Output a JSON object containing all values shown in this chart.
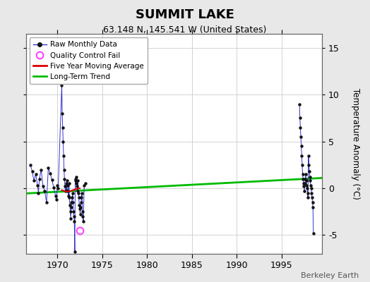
{
  "title": "SUMMIT LAKE",
  "subtitle": "63.148 N, 145.541 W (United States)",
  "ylabel_right": "Temperature Anomaly (°C)",
  "credit": "Berkeley Earth",
  "xlim": [
    1966.5,
    1999.5
  ],
  "ylim": [
    -7.0,
    16.5
  ],
  "xticks": [
    1970,
    1975,
    1980,
    1985,
    1990,
    1995
  ],
  "yticks": [
    -5,
    0,
    5,
    10,
    15
  ],
  "fig_bg_color": "#e8e8e8",
  "plot_bg_color": "#ffffff",
  "raw_data": [
    [
      1967.0,
      2.5
    ],
    [
      1967.2,
      1.8
    ],
    [
      1967.4,
      0.8
    ],
    [
      1967.6,
      1.5
    ],
    [
      1967.8,
      0.3
    ],
    [
      1967.9,
      -0.5
    ],
    [
      1968.0,
      1.0
    ],
    [
      1968.2,
      2.0
    ],
    [
      1968.4,
      0.2
    ],
    [
      1968.6,
      -0.3
    ],
    [
      1968.8,
      -1.5
    ],
    [
      1969.0,
      2.2
    ],
    [
      1969.2,
      1.6
    ],
    [
      1969.4,
      0.9
    ],
    [
      1969.6,
      0.1
    ],
    [
      1969.8,
      -0.8
    ],
    [
      1969.9,
      -1.2
    ],
    [
      1970.0,
      0.3
    ],
    [
      1970.1,
      0.0
    ],
    [
      1970.5,
      11.0
    ],
    [
      1970.55,
      8.0
    ],
    [
      1970.6,
      6.5
    ],
    [
      1970.65,
      5.0
    ],
    [
      1970.7,
      3.5
    ],
    [
      1970.75,
      2.0
    ],
    [
      1970.8,
      1.0
    ],
    [
      1970.85,
      0.2
    ],
    [
      1970.9,
      -0.3
    ],
    [
      1971.0,
      0.5
    ],
    [
      1971.05,
      -0.2
    ],
    [
      1971.1,
      0.8
    ],
    [
      1971.15,
      0.3
    ],
    [
      1971.2,
      -0.3
    ],
    [
      1971.25,
      -0.8
    ],
    [
      1971.3,
      0.5
    ],
    [
      1971.35,
      -1.0
    ],
    [
      1971.4,
      -1.8
    ],
    [
      1971.45,
      -2.5
    ],
    [
      1971.5,
      -3.2
    ],
    [
      1971.55,
      -2.0
    ],
    [
      1971.6,
      -1.5
    ],
    [
      1971.65,
      -1.0
    ],
    [
      1971.7,
      -0.5
    ],
    [
      1971.75,
      -1.5
    ],
    [
      1971.8,
      -2.5
    ],
    [
      1971.85,
      -3.0
    ],
    [
      1971.9,
      -3.5
    ],
    [
      1971.95,
      -6.8
    ],
    [
      1972.0,
      1.0
    ],
    [
      1972.05,
      0.8
    ],
    [
      1972.1,
      0.5
    ],
    [
      1972.15,
      1.2
    ],
    [
      1972.2,
      0.2
    ],
    [
      1972.25,
      -0.3
    ],
    [
      1972.3,
      0.8
    ],
    [
      1972.35,
      -0.5
    ],
    [
      1972.4,
      -1.0
    ],
    [
      1972.45,
      -1.8
    ],
    [
      1972.5,
      -2.2
    ],
    [
      1972.55,
      -2.8
    ],
    [
      1972.6,
      -2.0
    ],
    [
      1972.65,
      -1.5
    ],
    [
      1972.7,
      -1.0
    ],
    [
      1972.75,
      -0.5
    ],
    [
      1972.8,
      -2.5
    ],
    [
      1972.85,
      -3.0
    ],
    [
      1972.9,
      -3.5
    ],
    [
      1973.0,
      0.3
    ],
    [
      1973.1,
      0.5
    ],
    [
      1997.0,
      9.0
    ],
    [
      1997.05,
      7.5
    ],
    [
      1997.1,
      6.5
    ],
    [
      1997.15,
      5.5
    ],
    [
      1997.2,
      4.5
    ],
    [
      1997.25,
      3.5
    ],
    [
      1997.3,
      2.5
    ],
    [
      1997.35,
      1.5
    ],
    [
      1997.4,
      1.0
    ],
    [
      1997.45,
      0.5
    ],
    [
      1997.5,
      0.2
    ],
    [
      1997.55,
      -0.3
    ],
    [
      1997.6,
      0.5
    ],
    [
      1997.65,
      1.0
    ],
    [
      1997.7,
      1.5
    ],
    [
      1997.75,
      0.8
    ],
    [
      1997.8,
      0.3
    ],
    [
      1997.85,
      0.0
    ],
    [
      1997.9,
      -0.5
    ],
    [
      1997.95,
      -1.0
    ],
    [
      1998.0,
      3.5
    ],
    [
      1998.05,
      2.5
    ],
    [
      1998.1,
      1.8
    ],
    [
      1998.15,
      1.2
    ],
    [
      1998.2,
      0.8
    ],
    [
      1998.25,
      0.3
    ],
    [
      1998.3,
      0.0
    ],
    [
      1998.35,
      -0.5
    ],
    [
      1998.4,
      -1.0
    ],
    [
      1998.45,
      -1.5
    ],
    [
      1998.5,
      -2.0
    ],
    [
      1998.55,
      -4.8
    ]
  ],
  "qc_fail_points": [
    [
      1972.5,
      -4.5
    ]
  ],
  "five_year_ma": [
    [
      1970.5,
      -0.2
    ],
    [
      1971.0,
      -0.35
    ],
    [
      1971.5,
      -0.3
    ],
    [
      1972.0,
      -0.1
    ],
    [
      1972.5,
      0.0
    ]
  ],
  "trend_line": [
    [
      1966.5,
      -0.55
    ],
    [
      1999.5,
      1.1
    ]
  ],
  "trend_color": "#00bb00",
  "raw_line_color": "#3333cc",
  "raw_marker_color": "#111111",
  "ma_color": "#dd0000",
  "qc_color": "#ff44ff",
  "grid_color": "#cccccc"
}
